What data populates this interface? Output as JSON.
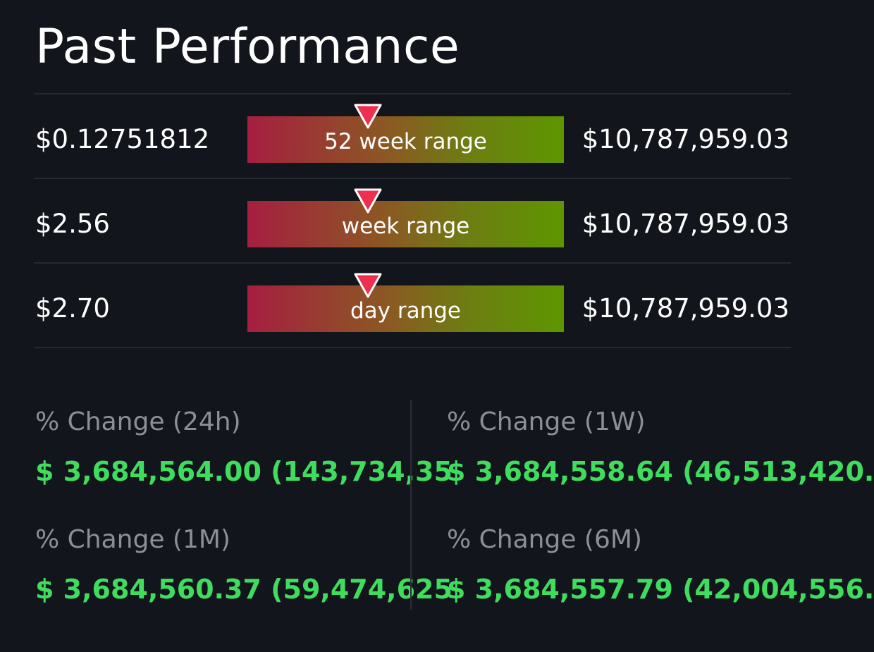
{
  "page": {
    "title": "Past Performance"
  },
  "colors": {
    "background": "#13151d",
    "positive": "#3fdc5e",
    "marker": "#ee2f4f",
    "bar_low": "#a61e40",
    "bar_high": "#5e9600"
  },
  "ranges": [
    {
      "low": "$0.12751812",
      "label": "52 week range",
      "high": "$10,787,959.03",
      "marker_position": 0.38
    },
    {
      "low": "$2.56",
      "label": "week range",
      "high": "$10,787,959.03",
      "marker_position": 0.38
    },
    {
      "low": "$2.70",
      "label": "day range",
      "high": "$10,787,959.03",
      "marker_position": 0.38
    }
  ],
  "stats": [
    {
      "label": "% Change (24h)",
      "value": "$ 3,684,564.00 (143,734,35"
    },
    {
      "label": "% Change (1W)",
      "value": "$ 3,684,558.64 (46,513,420."
    },
    {
      "label": "% Change (1M)",
      "value": "$ 3,684,560.37 (59,474,625"
    },
    {
      "label": "% Change (6M)",
      "value": "$ 3,684,557.79 (42,004,556."
    }
  ],
  "icons": {
    "range_marker": "triangle-down-icon"
  }
}
